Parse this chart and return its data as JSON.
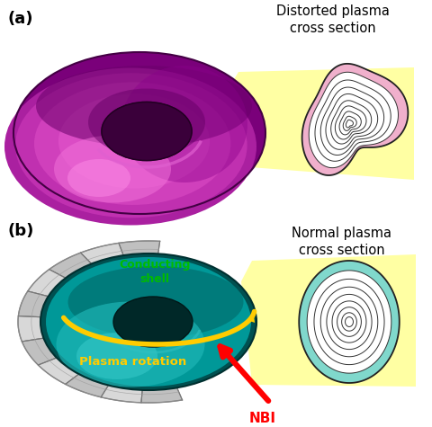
{
  "panel_a_label": "(a)",
  "panel_b_label": "(b)",
  "label_a_distorted_title": "Distorted plasma\ncross section",
  "label_b_normal_title": "Normal plasma\ncross section",
  "label_conducting_shell": "Conducting\nshell",
  "label_plasma_rotation": "Plasma rotation",
  "label_nbi": "NBI",
  "torus_a_magenta_dark": "#8b008b",
  "torus_a_magenta_mid": "#c030a8",
  "torus_a_magenta_bright": "#e050c8",
  "torus_a_magenta_highlight": "#ff80e0",
  "torus_b_teal_dark": "#005858",
  "torus_b_teal_mid": "#009898",
  "torus_b_teal_bright": "#00c0c0",
  "shell_dark": "#888888",
  "shell_mid": "#aaaaaa",
  "shell_light": "#cccccc",
  "yellow_beam": "#ffff99",
  "cross_a_fill": "#f0b0cc",
  "cross_b_fill": "#80d8cc",
  "green_label": "#00bb00",
  "yellow_label": "#ffcc00",
  "red_label": "#ff0000",
  "bg": "#ffffff"
}
